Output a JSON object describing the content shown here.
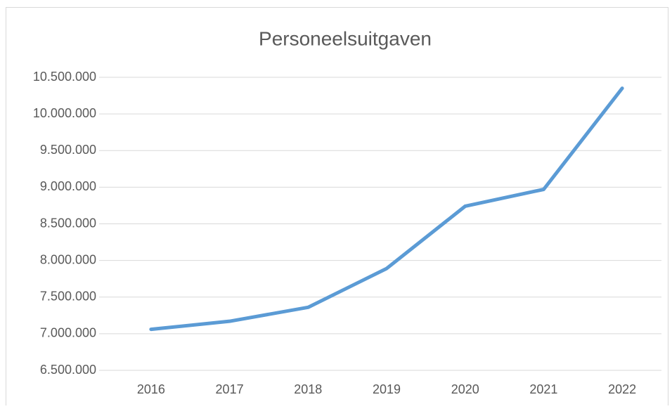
{
  "chart_data": {
    "type": "line",
    "title": "Personeelsuitgaven",
    "categories": [
      "2016",
      "2017",
      "2018",
      "2019",
      "2020",
      "2021",
      "2022"
    ],
    "series": [
      {
        "name": "Personeelsuitgaven",
        "color": "#5b9bd5",
        "values": [
          7060000,
          7170000,
          7360000,
          7890000,
          8740000,
          8970000,
          10350000
        ]
      }
    ],
    "ylim": [
      6500000,
      10500000
    ],
    "yticks": [
      {
        "value": 6500000,
        "label": "6.500.000"
      },
      {
        "value": 7000000,
        "label": "7.000.000"
      },
      {
        "value": 7500000,
        "label": "7.500.000"
      },
      {
        "value": 8000000,
        "label": "8.000.000"
      },
      {
        "value": 8500000,
        "label": "8.500.000"
      },
      {
        "value": 9000000,
        "label": "9.000.000"
      },
      {
        "value": 9500000,
        "label": "9.500.000"
      },
      {
        "value": 10000000,
        "label": "10.000.000"
      },
      {
        "value": 10500000,
        "label": "10.500.000"
      }
    ],
    "grid": true
  }
}
